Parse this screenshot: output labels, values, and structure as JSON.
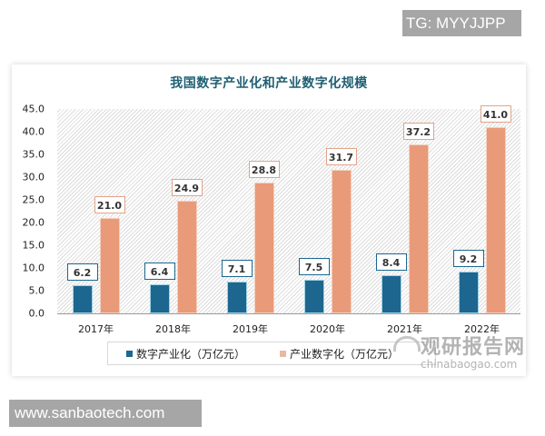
{
  "overlay": {
    "top_badge": "TG: MYYJJPP",
    "bottom_badge": "www.sanbaotech.com"
  },
  "watermark": {
    "cn": "观研报告网",
    "en": "chinabaogao.com"
  },
  "chart_data": {
    "type": "bar",
    "title": "我国数字产业化和产业数字化规模",
    "categories": [
      "2017年",
      "2018年",
      "2019年",
      "2020年",
      "2021年",
      "2022年"
    ],
    "series": [
      {
        "name": "数字产业化（万亿元）",
        "color": "#1d6690",
        "values": [
          6.2,
          6.4,
          7.1,
          7.5,
          8.4,
          9.2
        ],
        "labels": [
          "6.2",
          "6.4",
          "7.1",
          "7.5",
          "8.4",
          "9.2"
        ]
      },
      {
        "name": "产业数字化（万亿元）",
        "color": "#e99a78",
        "values": [
          21.0,
          24.9,
          28.8,
          31.7,
          37.2,
          41.0
        ],
        "labels": [
          "21.0",
          "24.9",
          "28.8",
          "31.7",
          "37.2",
          "41.0"
        ]
      }
    ],
    "xlabel": "",
    "ylabel": "",
    "ylim": [
      0,
      45
    ],
    "yticks": [
      "0.0",
      "5.0",
      "10.0",
      "15.0",
      "20.0",
      "25.0",
      "30.0",
      "35.0",
      "40.0",
      "45.0"
    ],
    "grid": false,
    "legend_position": "bottom"
  }
}
